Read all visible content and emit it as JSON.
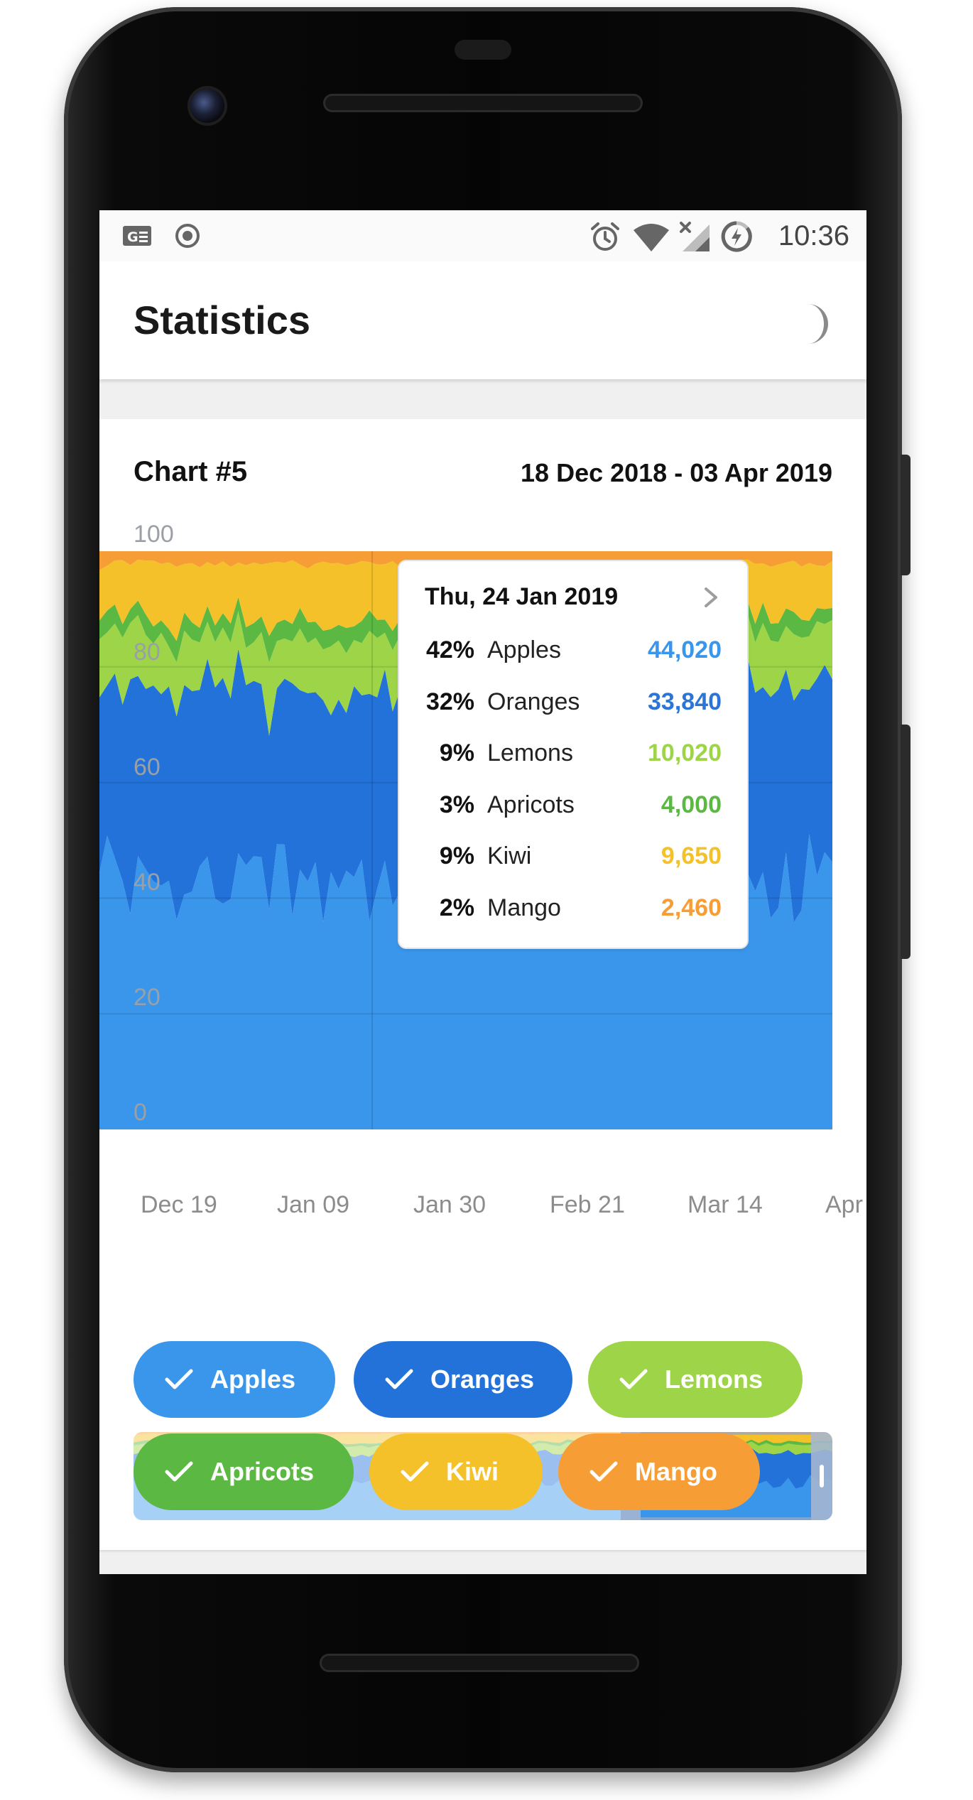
{
  "status_bar": {
    "time": "10:36",
    "icons": [
      "g-lens-icon",
      "record-icon",
      "alarm-icon",
      "wifi-icon",
      "no-signal-icon",
      "battery-charging-icon"
    ]
  },
  "app_bar": {
    "title": "Statistics",
    "theme_toggle_icon": "moon-icon"
  },
  "card": {
    "title": "Chart #5",
    "date_range": "18 Dec 2018 - 03 Apr 2019"
  },
  "chart_data": {
    "type": "area",
    "stacked": "percentage",
    "title": "Chart #5",
    "ylim": [
      0,
      100
    ],
    "y_ticks": [
      "0",
      "20",
      "40",
      "60",
      "80",
      "100"
    ],
    "x_ticks": [
      "Dec 19",
      "Jan 09",
      "Jan 30",
      "Feb 21",
      "Mar 14",
      "Apr"
    ],
    "grid": true,
    "series": [
      {
        "name": "Apples",
        "color": "#3a96eb",
        "approx_share": 42
      },
      {
        "name": "Oranges",
        "color": "#2272d9",
        "approx_share": 32
      },
      {
        "name": "Lemons",
        "color": "#9ed448",
        "approx_share": 9
      },
      {
        "name": "Apricots",
        "color": "#5bb843",
        "approx_share": 3
      },
      {
        "name": "Kiwi",
        "color": "#f4c12a",
        "approx_share": 9
      },
      {
        "name": "Mango",
        "color": "#f69d35",
        "approx_share": 2
      }
    ],
    "tooltip": {
      "date": "Thu, 24 Jan 2019",
      "rows": [
        {
          "pct": "42%",
          "name": "Apples",
          "value": "44,020",
          "color": "#3a96eb"
        },
        {
          "pct": "32%",
          "name": "Oranges",
          "value": "33,840",
          "color": "#2c75d6"
        },
        {
          "pct": "9%",
          "name": "Lemons",
          "value": "10,020",
          "color": "#9ed448"
        },
        {
          "pct": "3%",
          "name": "Apricots",
          "value": "4,000",
          "color": "#5bb843"
        },
        {
          "pct": "9%",
          "name": "Kiwi",
          "value": "9,650",
          "color": "#f4c12a"
        },
        {
          "pct": "2%",
          "name": "Mango",
          "value": "2,460",
          "color": "#f69d35"
        }
      ]
    }
  },
  "filters": [
    {
      "label": "Apples",
      "color": "#3a96eb"
    },
    {
      "label": "Oranges",
      "color": "#2272d9"
    },
    {
      "label": "Lemons",
      "color": "#9ed448"
    },
    {
      "label": "Apricots",
      "color": "#5bb843"
    },
    {
      "label": "Kiwi",
      "color": "#f4c12a"
    },
    {
      "label": "Mango",
      "color": "#f69d35"
    }
  ]
}
